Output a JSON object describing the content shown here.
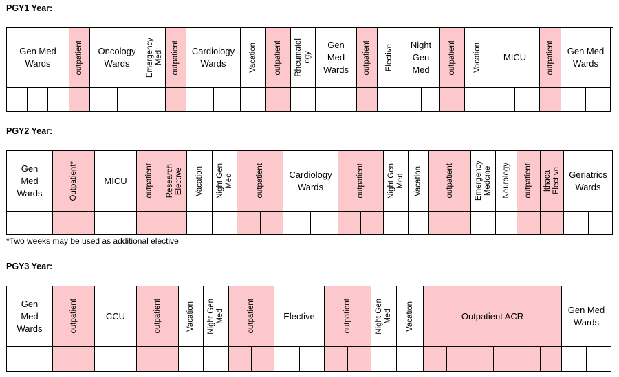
{
  "pgy1": {
    "title": "PGY1 Year:",
    "blocks": [
      {
        "label": "Gen Med\nWards",
        "pink": false,
        "v": false,
        "sub": 3
      },
      {
        "label": "outpatient",
        "pink": true,
        "v": true,
        "sub": 1
      },
      {
        "label": "Oncology\nWards",
        "pink": false,
        "v": false,
        "sub": 2
      },
      {
        "label": "Emergency\nMed",
        "pink": false,
        "v": true,
        "sub": 1
      },
      {
        "label": "outpatient",
        "pink": true,
        "v": true,
        "sub": 1
      },
      {
        "label": "Cardiology\nWards",
        "pink": false,
        "v": false,
        "sub": 2
      },
      {
        "label": "Vacation",
        "pink": false,
        "v": true,
        "sub": 1
      },
      {
        "label": "outpatient",
        "pink": true,
        "v": true,
        "sub": 1
      },
      {
        "label": "Rheumatol\nogy",
        "pink": false,
        "v": true,
        "sub": 1
      },
      {
        "label": "Gen\nMed\nWards",
        "pink": false,
        "v": false,
        "sub": 2
      },
      {
        "label": "outpatient",
        "pink": true,
        "v": true,
        "sub": 1
      },
      {
        "label": "Elective",
        "pink": false,
        "v": true,
        "sub": 1
      },
      {
        "label": "Night\nGen\nMed",
        "pink": false,
        "v": false,
        "sub": 2
      },
      {
        "label": "outpatient",
        "pink": true,
        "v": true,
        "sub": 1
      },
      {
        "label": "Vacation",
        "pink": false,
        "v": true,
        "sub": 1
      },
      {
        "label": "MICU",
        "pink": false,
        "v": false,
        "sub": 2
      },
      {
        "label": "outpatient",
        "pink": true,
        "v": true,
        "sub": 1
      },
      {
        "label": "Gen Med\nWards",
        "pink": false,
        "v": false,
        "sub": 2
      }
    ]
  },
  "pgy2": {
    "title": "PGY2 Year:",
    "blocks": [
      {
        "label": "Gen\nMed\nWards",
        "pink": false,
        "v": false,
        "sub": 2
      },
      {
        "label": "Outpatient*",
        "pink": true,
        "v": true,
        "sub": 2
      },
      {
        "label": "MICU",
        "pink": false,
        "v": false,
        "sub": 2
      },
      {
        "label": "outpatient",
        "pink": true,
        "v": true,
        "sub": 1
      },
      {
        "label": "Research\nElective",
        "pink": true,
        "v": true,
        "sub": 1
      },
      {
        "label": "Vacation",
        "pink": false,
        "v": true,
        "sub": 1
      },
      {
        "label": "Night Gen\nMed",
        "pink": false,
        "v": true,
        "sub": 1
      },
      {
        "label": "outpatient",
        "pink": true,
        "v": true,
        "sub": 2
      },
      {
        "label": "Cardiology\nWards",
        "pink": false,
        "v": false,
        "sub": 2
      },
      {
        "label": "outpatient",
        "pink": true,
        "v": true,
        "sub": 2
      },
      {
        "label": "Night Gen\nMed",
        "pink": false,
        "v": true,
        "sub": 1
      },
      {
        "label": "Vacation",
        "pink": false,
        "v": true,
        "sub": 1
      },
      {
        "label": "outpatient",
        "pink": true,
        "v": true,
        "sub": 2
      },
      {
        "label": "Emergency\nMedcine",
        "pink": false,
        "v": true,
        "sub": 1
      },
      {
        "label": "Neurology",
        "pink": false,
        "v": true,
        "sub": 1
      },
      {
        "label": "outpatient",
        "pink": true,
        "v": true,
        "sub": 1
      },
      {
        "label": "Ithaca\nElective",
        "pink": true,
        "v": true,
        "sub": 1
      },
      {
        "label": "Geriatrics\nWards",
        "pink": false,
        "v": false,
        "sub": 2
      }
    ],
    "footnote": "*Two weeks may be used as additional elective"
  },
  "pgy3": {
    "title": "PGY3 Year:",
    "blocks": [
      {
        "label": "Gen\nMed\nWards",
        "pink": false,
        "v": false,
        "sub": 2
      },
      {
        "label": "outpatient",
        "pink": true,
        "v": true,
        "sub": 2
      },
      {
        "label": "CCU",
        "pink": false,
        "v": false,
        "sub": 2
      },
      {
        "label": "outpatient",
        "pink": true,
        "v": true,
        "sub": 2
      },
      {
        "label": "Vacation",
        "pink": false,
        "v": true,
        "sub": 1
      },
      {
        "label": "Night Gen\nMed",
        "pink": false,
        "v": true,
        "sub": 1
      },
      {
        "label": "outpatient",
        "pink": true,
        "v": true,
        "sub": 2
      },
      {
        "label": "Elective",
        "pink": false,
        "v": false,
        "sub": 2
      },
      {
        "label": "outpatient",
        "pink": true,
        "v": true,
        "sub": 2
      },
      {
        "label": "Night Gen\nMed",
        "pink": false,
        "v": true,
        "sub": 1
      },
      {
        "label": "Vacation",
        "pink": false,
        "v": true,
        "sub": 1
      },
      {
        "label": "Outpatient ACR",
        "pink": true,
        "v": false,
        "sub": 6
      },
      {
        "label": "Gen Med\nWards",
        "pink": false,
        "v": false,
        "sub": 2
      }
    ]
  }
}
